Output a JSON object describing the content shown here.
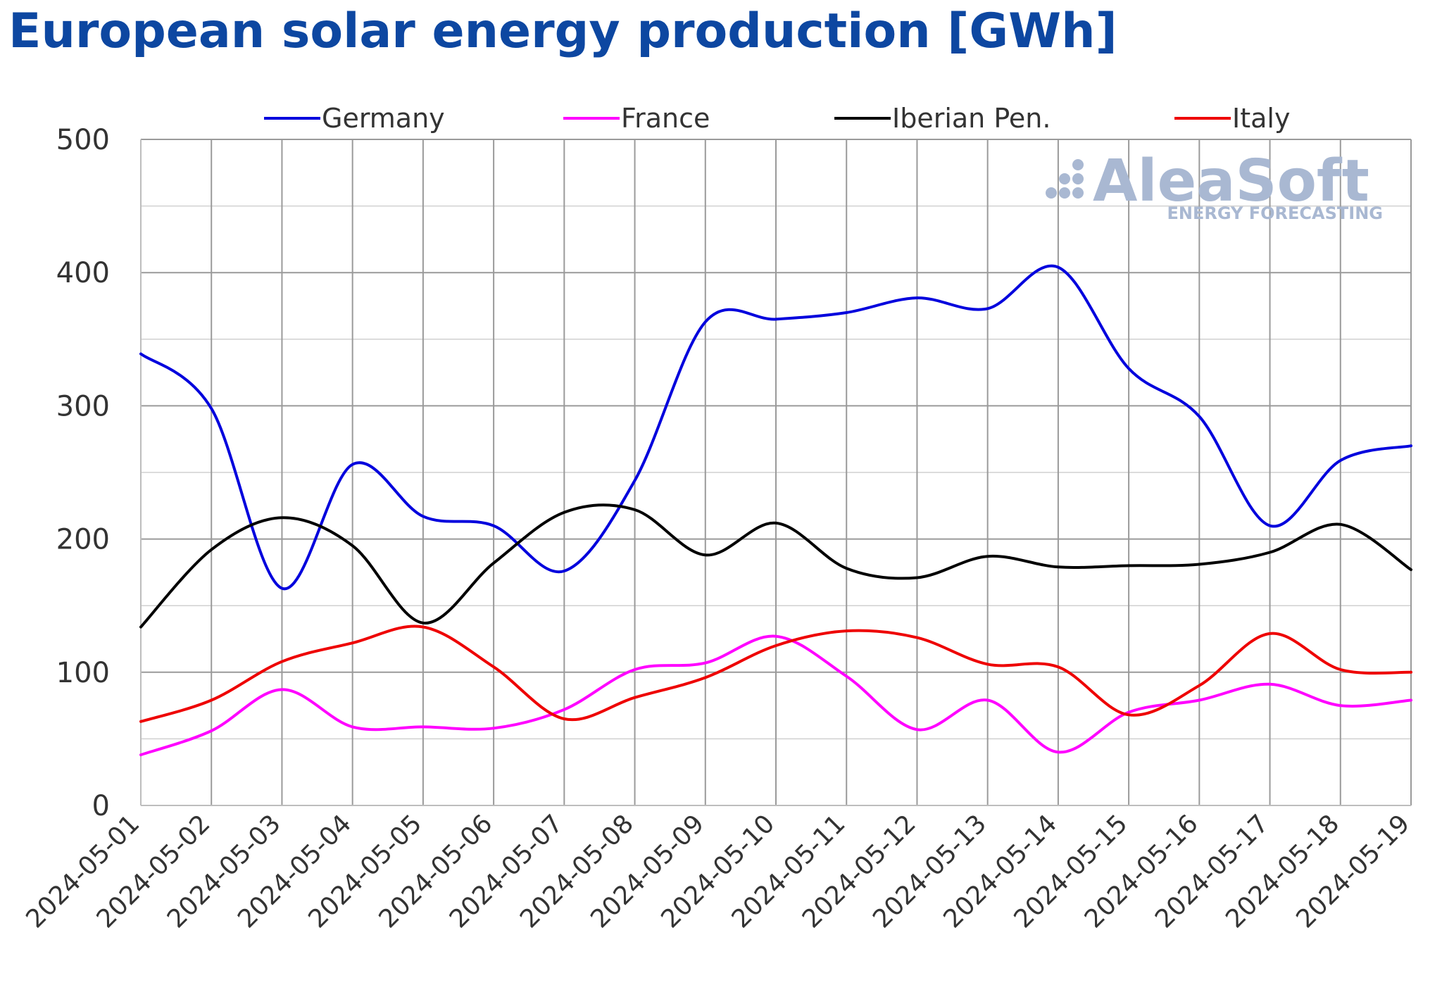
{
  "title": "European solar energy production [GWh]",
  "logo": {
    "name": "AleaSoft",
    "tagline": "ENERGY FORECASTING"
  },
  "chart_data": {
    "type": "line",
    "title": "European solar energy production [GWh]",
    "xlabel": "",
    "ylabel": "",
    "ylim": [
      0,
      500
    ],
    "y_ticks": [
      0,
      100,
      200,
      300,
      400,
      500
    ],
    "grid": true,
    "legend_position": "top",
    "categories": [
      "2024-05-01",
      "2024-05-02",
      "2024-05-03",
      "2024-05-04",
      "2024-05-05",
      "2024-05-06",
      "2024-05-07",
      "2024-05-08",
      "2024-05-09",
      "2024-05-10",
      "2024-05-11",
      "2024-05-12",
      "2024-05-13",
      "2024-05-14",
      "2024-05-15",
      "2024-05-16",
      "2024-05-17",
      "2024-05-18",
      "2024-05-19"
    ],
    "series": [
      {
        "name": "Germany",
        "color": "#0000dd",
        "values": [
          339,
          298,
          163,
          256,
          217,
          210,
          176,
          244,
          363,
          365,
          370,
          381,
          373,
          404,
          328,
          292,
          210,
          259,
          270
        ]
      },
      {
        "name": "France",
        "color": "#ff00ff",
        "values": [
          38,
          56,
          87,
          59,
          59,
          58,
          72,
          102,
          107,
          127,
          97,
          57,
          79,
          40,
          70,
          79,
          91,
          75,
          79
        ]
      },
      {
        "name": "Iberian Pen.",
        "color": "#000000",
        "values": [
          134,
          192,
          216,
          195,
          137,
          182,
          220,
          222,
          188,
          212,
          178,
          171,
          187,
          179,
          180,
          181,
          190,
          211,
          177
        ]
      },
      {
        "name": "Italy",
        "color": "#ee0000",
        "values": [
          63,
          79,
          108,
          122,
          134,
          104,
          65,
          81,
          96,
          120,
          131,
          126,
          106,
          104,
          68,
          90,
          129,
          102,
          100
        ]
      }
    ]
  }
}
